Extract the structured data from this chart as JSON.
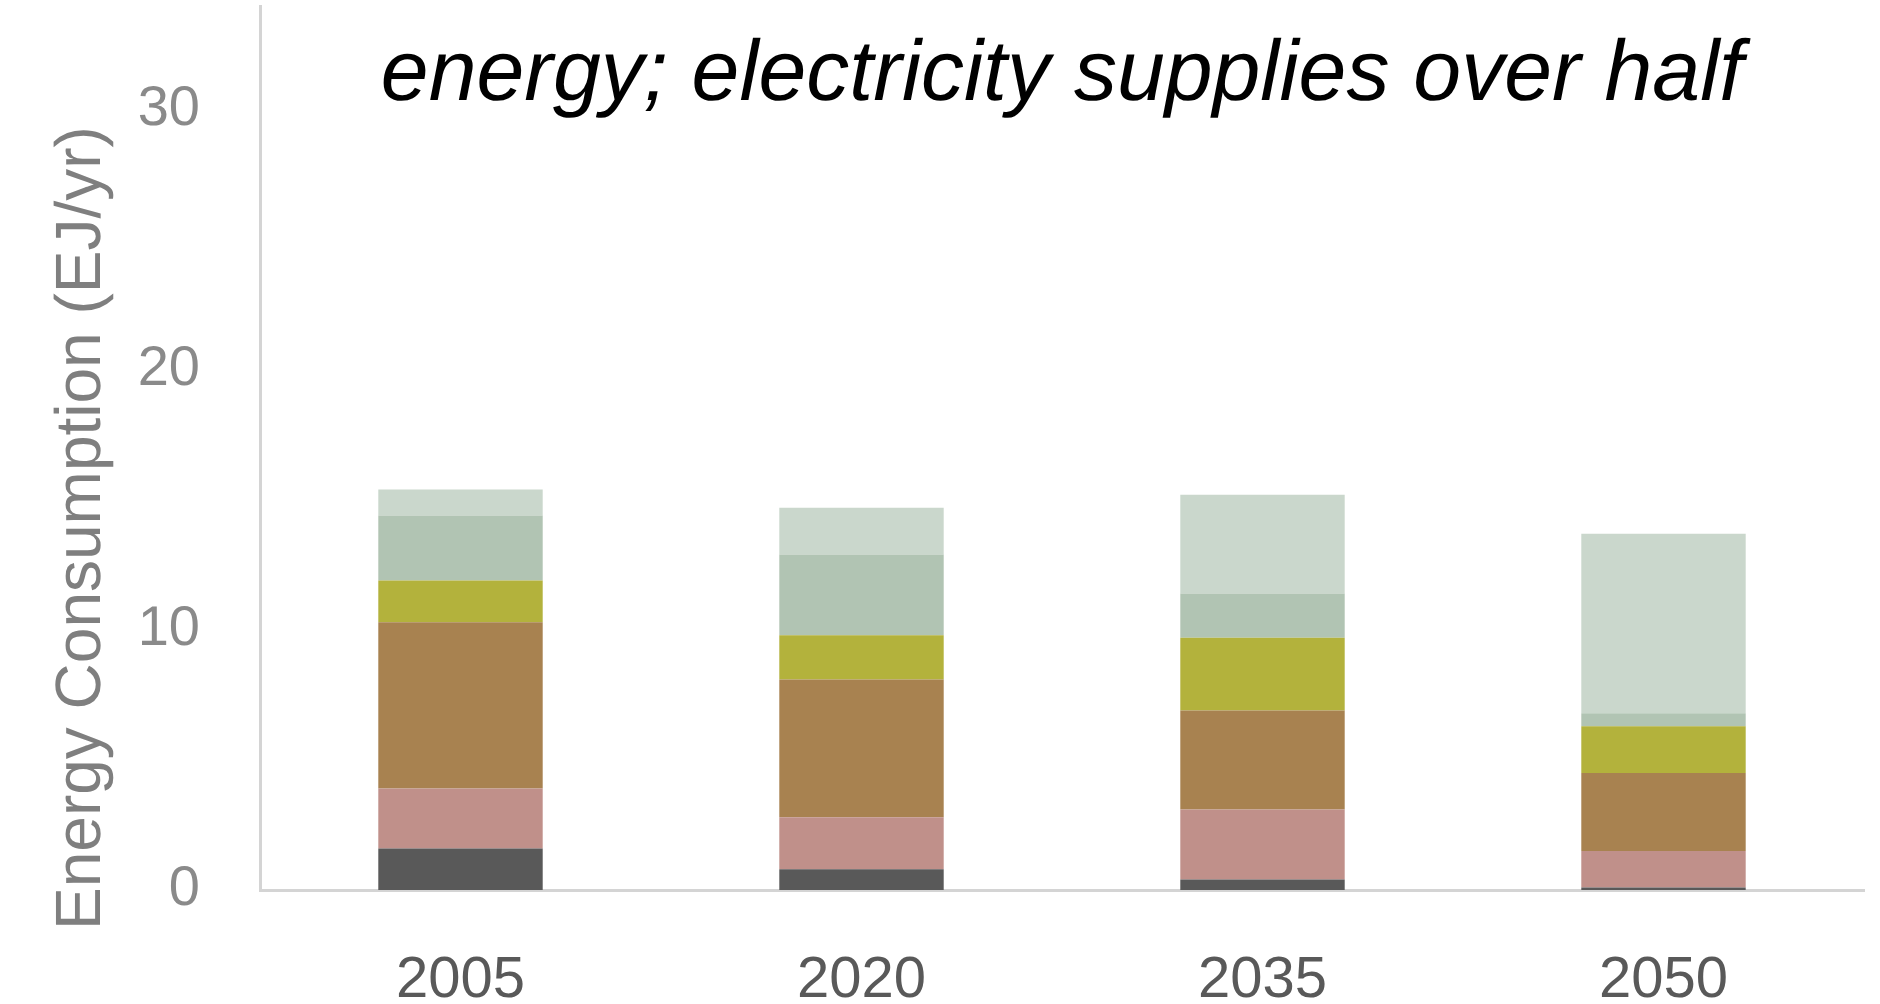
{
  "chart_data": {
    "type": "bar",
    "title": "energy; electricity supplies over half",
    "ylabel": "Energy Consumption (EJ/yr)",
    "categories": [
      "2005",
      "2020",
      "2035",
      "2050"
    ],
    "stacked": true,
    "series": [
      {
        "color": "#595959",
        "values": [
          1.6,
          0.8,
          0.4,
          0.1
        ]
      },
      {
        "color": "#c0908a",
        "values": [
          2.3,
          2.0,
          2.7,
          1.4
        ]
      },
      {
        "color": "#a88250",
        "values": [
          6.4,
          5.3,
          3.8,
          3.0
        ]
      },
      {
        "color": "#b3b23c",
        "values": [
          1.6,
          1.7,
          2.8,
          1.8
        ]
      },
      {
        "color": "#b1c4b3",
        "values": [
          2.5,
          3.1,
          1.7,
          0.5
        ]
      },
      {
        "color": "#cad7cc",
        "values": [
          1.0,
          1.8,
          3.8,
          6.9
        ]
      }
    ],
    "ylim": [
      0,
      34
    ],
    "yticks": [
      0,
      10,
      20,
      30
    ]
  }
}
